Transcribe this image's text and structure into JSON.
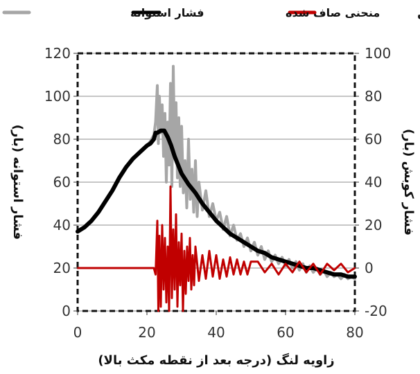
{
  "chart_data": {
    "type": "line",
    "title": "",
    "xlabel": "زاویه لنگ (درجه بعد از نقطه مکث بالا)",
    "ylabel_left": "فشار استوانه (بار)",
    "ylabel_right": "فشار کوبش (بار)",
    "xlim": [
      0,
      80
    ],
    "ylim_left": [
      0,
      120
    ],
    "ylim_right": [
      -20,
      100
    ],
    "x_ticks": [
      "0",
      "20",
      "40",
      "60",
      "80"
    ],
    "y_ticks_left": [
      "0",
      "20",
      "40",
      "60",
      "80",
      "100",
      "120"
    ],
    "y_ticks_right": [
      "-20",
      "0",
      "20",
      "40",
      "60",
      "80",
      "100"
    ],
    "grid": true,
    "legend_position": "top",
    "legend": [
      {
        "label": "فشار استوانه",
        "color": "#a6a6a6"
      },
      {
        "label": "منحنی صاف شده",
        "color": "#000000"
      },
      {
        "label": "منحنی فشار کوبش",
        "color": "#c00000"
      }
    ],
    "series": [
      {
        "name": "فشار استوانه",
        "axis": "left",
        "color": "#a6a6a6",
        "x": [
          0,
          2,
          4,
          6,
          8,
          10,
          12,
          14,
          16,
          18,
          20,
          21,
          22,
          22.5,
          23,
          23.3,
          23.6,
          24,
          24.4,
          24.8,
          25.2,
          25.6,
          26,
          26.4,
          26.8,
          27.2,
          27.6,
          28,
          28.4,
          28.8,
          29.2,
          29.6,
          30,
          30.5,
          31,
          31.5,
          32,
          32.5,
          33,
          33.5,
          34,
          34.5,
          35,
          36,
          37,
          38,
          39,
          40,
          41,
          42,
          43,
          44,
          45,
          46,
          47,
          48,
          49,
          50,
          51,
          52,
          53,
          54,
          55,
          56,
          57,
          58,
          59,
          60,
          61,
          62,
          63,
          64,
          65,
          66,
          67,
          68,
          69,
          70,
          71,
          72,
          73,
          74,
          75,
          76,
          77,
          78,
          79,
          80
        ],
        "y": [
          37,
          39,
          42,
          46,
          51,
          56,
          62,
          67,
          71,
          74,
          77,
          79,
          82,
          88,
          105,
          78,
          100,
          83,
          96,
          72,
          92,
          60,
          88,
          68,
          106,
          58,
          114,
          72,
          97,
          62,
          90,
          58,
          86,
          55,
          70,
          48,
          80,
          52,
          66,
          46,
          70,
          44,
          60,
          47,
          56,
          44,
          50,
          42,
          46,
          38,
          44,
          35,
          40,
          33,
          36,
          30,
          34,
          28,
          32,
          26,
          30,
          24,
          28,
          23,
          26,
          22,
          25,
          21,
          24,
          20,
          23,
          19,
          22,
          18,
          21,
          18,
          20,
          17,
          19,
          16,
          18,
          16,
          17,
          15,
          17,
          15,
          16,
          15
        ]
      },
      {
        "name": "منحنی صاف شده",
        "axis": "left",
        "color": "#000000",
        "x": [
          0,
          2,
          4,
          6,
          8,
          10,
          12,
          14,
          16,
          18,
          20,
          21,
          22,
          22.5,
          23,
          24,
          25,
          26,
          27,
          28,
          29,
          30,
          32,
          34,
          36,
          38,
          40,
          42,
          44,
          46,
          48,
          50,
          52,
          54,
          56,
          58,
          60,
          62,
          64,
          66,
          68,
          70,
          72,
          74,
          76,
          78,
          80
        ],
        "y": [
          37,
          39,
          42,
          46,
          51,
          56,
          62,
          67,
          71,
          74,
          77,
          78,
          80,
          83,
          83,
          84,
          84,
          81,
          77,
          72,
          68,
          64,
          59,
          55,
          50,
          46,
          42,
          39,
          36,
          34,
          32,
          30,
          28,
          27,
          25,
          24,
          23,
          22,
          21,
          20,
          20,
          19,
          18,
          17,
          17,
          16,
          16
        ]
      },
      {
        "name": "منحنی فشار کوبش",
        "axis": "right",
        "color": "#c00000",
        "x": [
          0,
          10,
          20,
          21,
          22,
          22.5,
          23,
          23.3,
          23.6,
          24,
          24.4,
          24.8,
          25.2,
          25.6,
          26,
          26.4,
          26.8,
          27.2,
          27.6,
          28,
          28.4,
          28.8,
          29.2,
          29.6,
          30,
          30.4,
          30.8,
          31.2,
          31.6,
          32,
          32.4,
          32.8,
          33.2,
          33.6,
          34,
          35,
          36,
          37,
          38,
          39,
          40,
          41,
          42,
          43,
          44,
          45,
          46,
          47,
          48,
          49,
          50,
          52,
          54,
          56,
          58,
          60,
          62,
          64,
          66,
          68,
          70,
          72,
          74,
          76,
          78,
          80
        ],
        "y": [
          0,
          0,
          0,
          0,
          0,
          -3,
          22,
          -20,
          15,
          -18,
          20,
          -10,
          14,
          -16,
          10,
          -20,
          38,
          -14,
          18,
          -10,
          25,
          -18,
          12,
          -8,
          16,
          -20,
          8,
          -12,
          10,
          -6,
          14,
          -10,
          6,
          -8,
          10,
          -6,
          6,
          -5,
          8,
          -4,
          6,
          -5,
          4,
          -4,
          5,
          -3,
          4,
          -3,
          3,
          -3,
          3,
          3,
          -2,
          2,
          -3,
          2,
          -2,
          3,
          -2,
          2,
          -3,
          2,
          -1,
          2,
          -2,
          0
        ]
      }
    ]
  }
}
